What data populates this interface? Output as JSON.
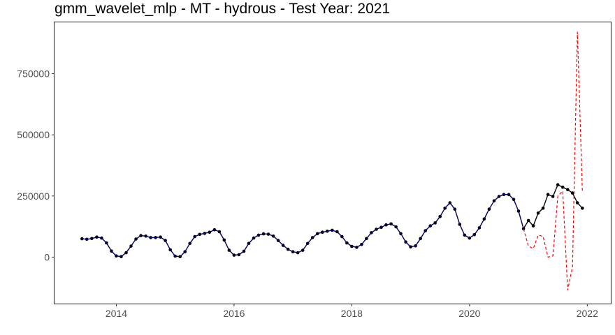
{
  "chart_data": {
    "type": "line",
    "title": "gmm_wavelet_mlp - MT - hydrous - Test Year: 2021",
    "xlabel": "",
    "ylabel": "",
    "xlim": [
      2012.95,
      2022.4
    ],
    "ylim": [
      -190000,
      960000
    ],
    "grid": false,
    "legend": "none",
    "x_ticks": [
      2014,
      2016,
      2018,
      2020,
      2022
    ],
    "y_ticks": [
      0,
      250000,
      500000,
      750000
    ],
    "y_tick_labels": [
      "0",
      "250000",
      "500000",
      "750000"
    ],
    "colors": {
      "actual": "#000000",
      "fitted": "#00008b",
      "forecast": "#ff0000"
    },
    "series": [
      {
        "role": "actual",
        "style": "solid-with-points",
        "x": [
          2013.417,
          2013.5,
          2013.583,
          2013.667,
          2013.75,
          2013.833,
          2013.917,
          2014.0,
          2014.083,
          2014.167,
          2014.25,
          2014.333,
          2014.417,
          2014.5,
          2014.583,
          2014.667,
          2014.75,
          2014.833,
          2014.917,
          2015.0,
          2015.083,
          2015.167,
          2015.25,
          2015.333,
          2015.417,
          2015.5,
          2015.583,
          2015.667,
          2015.75,
          2015.833,
          2015.917,
          2016.0,
          2016.083,
          2016.167,
          2016.25,
          2016.333,
          2016.417,
          2016.5,
          2016.583,
          2016.667,
          2016.75,
          2016.833,
          2016.917,
          2017.0,
          2017.083,
          2017.167,
          2017.25,
          2017.333,
          2017.417,
          2017.5,
          2017.583,
          2017.667,
          2017.75,
          2017.833,
          2017.917,
          2018.0,
          2018.083,
          2018.167,
          2018.25,
          2018.333,
          2018.417,
          2018.5,
          2018.583,
          2018.667,
          2018.75,
          2018.833,
          2018.917,
          2019.0,
          2019.083,
          2019.167,
          2019.25,
          2019.333,
          2019.417,
          2019.5,
          2019.583,
          2019.667,
          2019.75,
          2019.833,
          2019.917,
          2020.0,
          2020.083,
          2020.167,
          2020.25,
          2020.333,
          2020.417,
          2020.5,
          2020.583,
          2020.667,
          2020.75,
          2020.833,
          2020.917,
          2021.0,
          2021.083,
          2021.167,
          2021.25,
          2021.333,
          2021.417,
          2021.5,
          2021.583,
          2021.667,
          2021.75,
          2021.833,
          2021.917
        ],
        "values": [
          75000,
          73000,
          76000,
          82000,
          78000,
          58000,
          25000,
          5000,
          2000,
          18000,
          45000,
          74000,
          88000,
          86000,
          80000,
          80000,
          82000,
          68000,
          30000,
          4000,
          2000,
          22000,
          56000,
          84000,
          93000,
          97000,
          102000,
          112000,
          104000,
          70000,
          28000,
          8000,
          10000,
          24000,
          56000,
          78000,
          90000,
          95000,
          94000,
          86000,
          68000,
          48000,
          32000,
          22000,
          18000,
          28000,
          56000,
          80000,
          96000,
          102000,
          106000,
          110000,
          104000,
          84000,
          58000,
          44000,
          40000,
          52000,
          76000,
          100000,
          114000,
          122000,
          132000,
          136000,
          124000,
          96000,
          62000,
          42000,
          46000,
          76000,
          108000,
          128000,
          140000,
          166000,
          200000,
          222000,
          196000,
          134000,
          90000,
          78000,
          92000,
          120000,
          156000,
          196000,
          230000,
          248000,
          256000,
          256000,
          236000,
          188000,
          116000,
          150000,
          128000,
          180000,
          200000,
          256000,
          248000,
          296000,
          286000,
          276000,
          262000,
          222000,
          200000
        ]
      },
      {
        "role": "fitted",
        "style": "solid-thin",
        "x": [
          2013.417,
          2013.5,
          2013.583,
          2013.667,
          2013.75,
          2013.833,
          2013.917,
          2014.0,
          2014.083,
          2014.167,
          2014.25,
          2014.333,
          2014.417,
          2014.5,
          2014.583,
          2014.667,
          2014.75,
          2014.833,
          2014.917,
          2015.0,
          2015.083,
          2015.167,
          2015.25,
          2015.333,
          2015.417,
          2015.5,
          2015.583,
          2015.667,
          2015.75,
          2015.833,
          2015.917,
          2016.0,
          2016.083,
          2016.167,
          2016.25,
          2016.333,
          2016.417,
          2016.5,
          2016.583,
          2016.667,
          2016.75,
          2016.833,
          2016.917,
          2017.0,
          2017.083,
          2017.167,
          2017.25,
          2017.333,
          2017.417,
          2017.5,
          2017.583,
          2017.667,
          2017.75,
          2017.833,
          2017.917,
          2018.0,
          2018.083,
          2018.167,
          2018.25,
          2018.333,
          2018.417,
          2018.5,
          2018.583,
          2018.667,
          2018.75,
          2018.833,
          2018.917,
          2019.0,
          2019.083,
          2019.167,
          2019.25,
          2019.333,
          2019.417,
          2019.5,
          2019.583,
          2019.667,
          2019.75,
          2019.833,
          2019.917,
          2020.0,
          2020.083,
          2020.167,
          2020.25,
          2020.333,
          2020.417,
          2020.5,
          2020.583,
          2020.667,
          2020.75,
          2020.833,
          2020.917
        ],
        "values": [
          75000,
          73000,
          76000,
          82000,
          78000,
          58000,
          25000,
          5000,
          2000,
          18000,
          45000,
          74000,
          88000,
          86000,
          80000,
          80000,
          82000,
          68000,
          30000,
          4000,
          2000,
          22000,
          56000,
          84000,
          93000,
          97000,
          102000,
          112000,
          104000,
          70000,
          28000,
          8000,
          10000,
          24000,
          56000,
          78000,
          90000,
          95000,
          94000,
          86000,
          68000,
          48000,
          32000,
          22000,
          18000,
          28000,
          56000,
          80000,
          96000,
          102000,
          106000,
          110000,
          104000,
          84000,
          58000,
          44000,
          40000,
          52000,
          76000,
          100000,
          114000,
          122000,
          132000,
          136000,
          124000,
          96000,
          62000,
          42000,
          46000,
          76000,
          108000,
          128000,
          140000,
          166000,
          200000,
          222000,
          196000,
          134000,
          90000,
          78000,
          92000,
          120000,
          156000,
          196000,
          230000,
          248000,
          256000,
          256000,
          236000,
          188000,
          116000
        ]
      },
      {
        "role": "forecast",
        "style": "dashed",
        "x": [
          2020.917,
          2021.0,
          2021.083,
          2021.167,
          2021.25,
          2021.333,
          2021.417,
          2021.5,
          2021.583,
          2021.667,
          2021.75,
          2021.833,
          2021.917
        ],
        "values": [
          116000,
          45000,
          35000,
          90000,
          85000,
          0,
          5000,
          250000,
          270000,
          -135000,
          -40000,
          920000,
          270000
        ]
      }
    ]
  }
}
